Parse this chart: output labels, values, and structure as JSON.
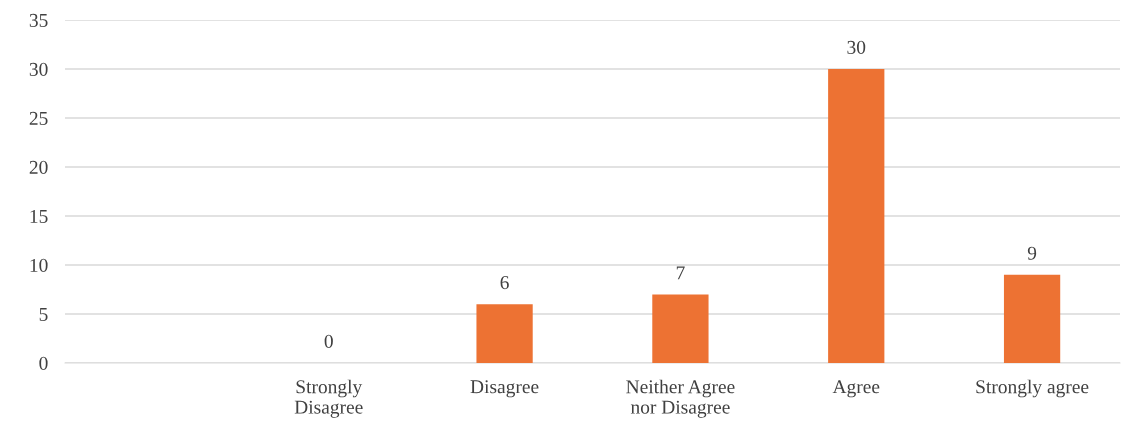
{
  "chart_data": {
    "type": "bar",
    "categories": [
      null,
      "Strongly\nDisagree",
      "Disagree",
      "Neither Agree\nnor Disagree",
      "Agree",
      "Strongly agree"
    ],
    "values": [
      null,
      0,
      6,
      7,
      30,
      9
    ],
    "color": "#ed7233",
    "ylim": [
      0,
      35
    ],
    "yticks": [
      0,
      5,
      10,
      15,
      20,
      25,
      30,
      35
    ],
    "grid": "y",
    "data_labels": true
  }
}
